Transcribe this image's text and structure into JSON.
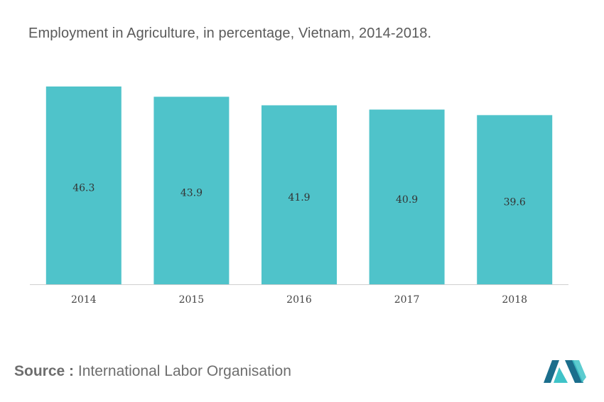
{
  "title": "Employment in Agriculture, in percentage, Vietnam, 2014-2018.",
  "source": {
    "label": "Source :",
    "text": "International Labor Organisation"
  },
  "logo": {
    "icon": "company-logo-icon",
    "colors": [
      "#1b6e8c",
      "#3fc3c8"
    ]
  },
  "colors": {
    "bar": "#4fc3ca",
    "axis": "#cfcfcf"
  },
  "chart_data": {
    "type": "bar",
    "title": "Employment in Agriculture, in percentage, Vietnam, 2014-2018.",
    "xlabel": "",
    "ylabel": "",
    "categories": [
      "2014",
      "2015",
      "2016",
      "2017",
      "2018"
    ],
    "values": [
      46.3,
      43.9,
      41.9,
      40.9,
      39.6
    ],
    "data_labels": [
      "46.3",
      "43.9",
      "41.9",
      "40.9",
      "39.6"
    ],
    "ylim": [
      0,
      46.3
    ],
    "grid": false,
    "legend": "none",
    "y_axis_visible": false
  }
}
